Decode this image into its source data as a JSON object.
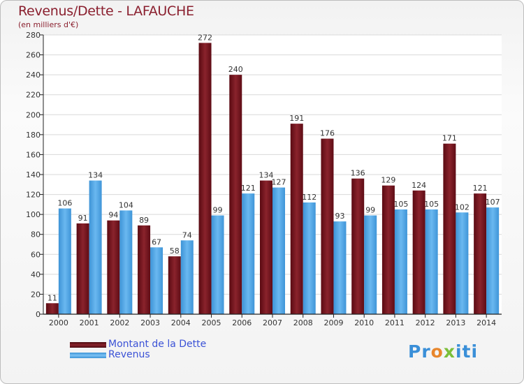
{
  "header": {
    "title": "Revenus/Dette - LAFAUCHE",
    "subtitle": "(en milliers d'€)"
  },
  "colors": {
    "dette": "#6e1019",
    "dette_light": "#a33a42",
    "revenus": "#4a9fe0",
    "revenus_light": "#6bb6ee",
    "axis": "#222222",
    "grid": "#d9d9d9"
  },
  "chart_data": {
    "type": "bar",
    "title": "Revenus/Dette - LAFAUCHE",
    "subtitle": "(en milliers d'€)",
    "categories": [
      "2000",
      "2001",
      "2002",
      "2003",
      "2004",
      "2005",
      "2006",
      "2007",
      "2008",
      "2009",
      "2010",
      "2011",
      "2012",
      "2013",
      "2014"
    ],
    "series": [
      {
        "name": "Montant de la Dette",
        "values": [
          11,
          91,
          94,
          89,
          58,
          272,
          240,
          134,
          191,
          176,
          136,
          129,
          124,
          171,
          121
        ]
      },
      {
        "name": "Revenus",
        "values": [
          106,
          134,
          104,
          67,
          74,
          99,
          121,
          127,
          112,
          93,
          99,
          105,
          105,
          102,
          107
        ]
      }
    ],
    "yticks": [
      0,
      20,
      40,
      60,
      80,
      100,
      120,
      140,
      160,
      180,
      200,
      220,
      240,
      260,
      280
    ],
    "ylim": [
      0,
      280
    ],
    "grid": true,
    "data_labels": true,
    "legend_position": "bottom-left"
  },
  "legend": {
    "items": [
      {
        "label": "Montant de la Dette"
      },
      {
        "label": "Revenus"
      }
    ]
  },
  "logo": {
    "p1": "Pr",
    "p2": "o",
    "p3": "x",
    "p4": "iti"
  }
}
